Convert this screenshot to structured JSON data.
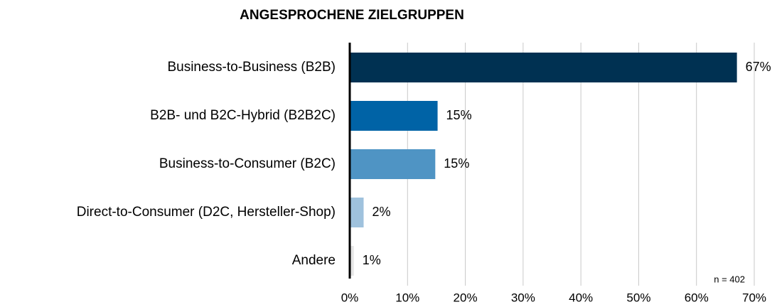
{
  "chart_data": {
    "type": "bar",
    "orientation": "horizontal",
    "title": "ANGESPROCHENE ZIELGRUPPEN",
    "categories": [
      "Business-to-Business (B2B)",
      "B2B- und B2C-Hybrid (B2B2C)",
      "Business-to-Consumer (B2C)",
      "Direct-to-Consumer (D2C, Hersteller-Shop)",
      "Andere"
    ],
    "values": [
      67,
      15.2,
      14.8,
      2.4,
      0.7
    ],
    "value_labels": [
      "67%",
      "15%",
      "15%",
      "2%",
      "1%"
    ],
    "colors": [
      "#003152",
      "#0063a6",
      "#4f94c4",
      "#9fc2dd",
      "#e6e6e6"
    ],
    "xlim": [
      0,
      70
    ],
    "xticks": [
      {
        "value": 0,
        "label": "0%"
      },
      {
        "value": 10,
        "label": "10%"
      },
      {
        "value": 20,
        "label": "20%"
      },
      {
        "value": 30,
        "label": "30%"
      },
      {
        "value": 40,
        "label": "40%"
      },
      {
        "value": 50,
        "label": "50%"
      },
      {
        "value": 60,
        "label": "60%"
      },
      {
        "value": 70,
        "label": "70%"
      }
    ],
    "grid": true,
    "annotation": "n = 402"
  }
}
